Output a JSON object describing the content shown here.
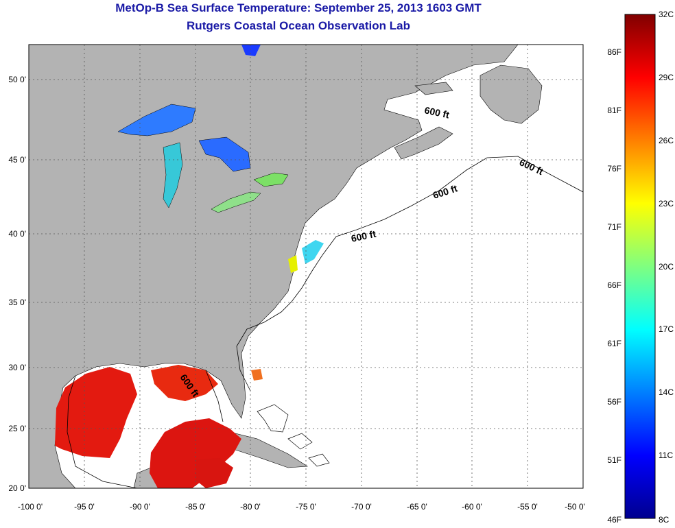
{
  "title_line1": "MetOp-B Sea Surface Temperature:  September 25, 2013 1603 GMT",
  "title_line2": "Rutgers Coastal Ocean Observation Lab",
  "map": {
    "lon_ticks": [
      "-100 0'",
      "-95 0'",
      "-90 0'",
      "-85 0'",
      "-80 0'",
      "-75 0'",
      "-70 0'",
      "-65 0'",
      "-60 0'",
      "-55 0'",
      "-50 0'"
    ],
    "lat_ticks": [
      "50 0'",
      "45 0'",
      "40 0'",
      "35 0'",
      "30 0'",
      "25 0'",
      "20 0'"
    ],
    "contour_labels": [
      "600 ft",
      "600 ft",
      "600 ft",
      "600 ft",
      "600 ft"
    ],
    "colors": {
      "land": "#b3b3b3",
      "ocean_nodata": "#ffffff",
      "grid": "#555555"
    }
  },
  "colorbar": {
    "celsius_labels": [
      "32C",
      "29C",
      "26C",
      "23C",
      "20C",
      "17C",
      "14C",
      "11C",
      "8C"
    ],
    "fahrenheit_labels": [
      "86F",
      "81F",
      "76F",
      "71F",
      "66F",
      "61F",
      "56F",
      "51F",
      "46F"
    ],
    "min_c": 8,
    "max_c": 32
  }
}
